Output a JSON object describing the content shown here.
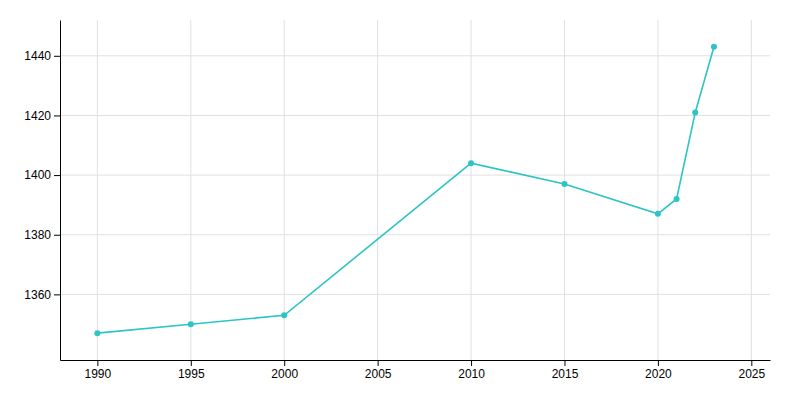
{
  "chart_data": {
    "type": "line",
    "x": [
      1990,
      1995,
      2000,
      2010,
      2015,
      2020,
      2021,
      2022,
      2023
    ],
    "values": [
      1347,
      1350,
      1353,
      1404,
      1397,
      1387,
      1392,
      1421,
      1443
    ],
    "color": "#2CC4C4",
    "marker": "circle",
    "xlim": [
      1988,
      2026
    ],
    "ylim": [
      1338,
      1452
    ],
    "xticks": [
      1990,
      1995,
      2000,
      2005,
      2010,
      2015,
      2020,
      2025
    ],
    "yticks": [
      1360,
      1380,
      1400,
      1420,
      1440
    ],
    "grid": true
  }
}
